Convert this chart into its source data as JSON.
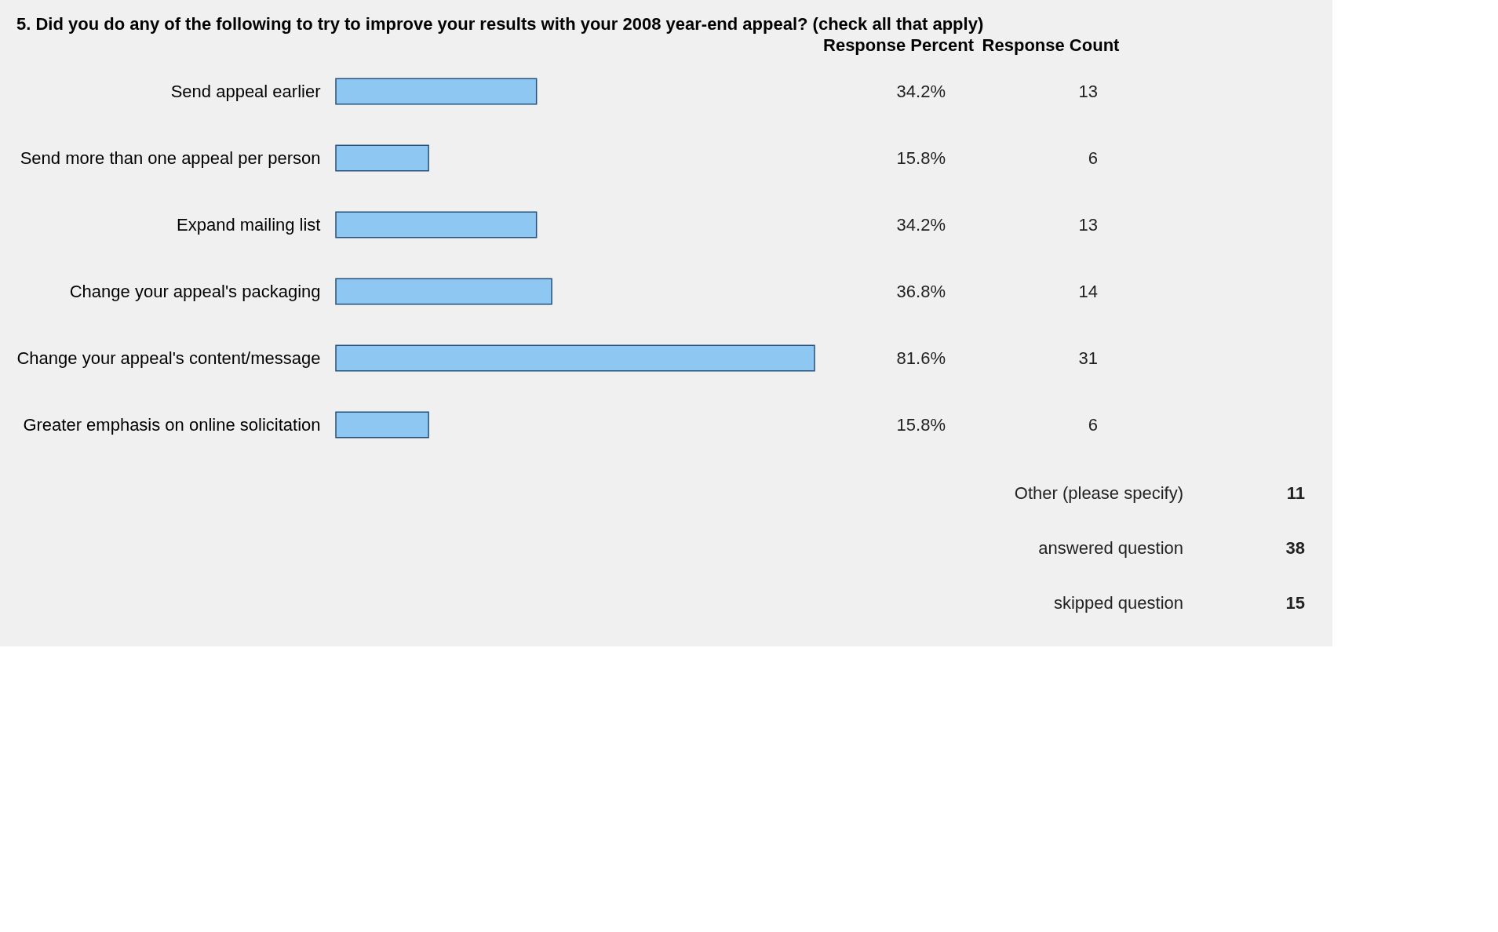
{
  "chart_data": {
    "type": "bar",
    "orientation": "horizontal",
    "title": "5. Did you do any of the following to try to improve your results with your 2008 year-end appeal? (check all that apply)",
    "categories": [
      "Send appeal earlier",
      "Send more than one appeal per person",
      "Expand mailing list",
      "Change your appeal's packaging",
      "Change your appeal's content/message",
      "Greater emphasis on online solicitation"
    ],
    "values": [
      34.2,
      15.8,
      34.2,
      36.8,
      81.6,
      15.8
    ],
    "value_labels": [
      "34.2%",
      "15.8%",
      "34.2%",
      "36.8%",
      "81.6%",
      "15.8%"
    ],
    "color": "#8ec8f2",
    "tick_labels": "y",
    "grid": false,
    "annotations": [
      "Response Percent",
      "Response Count",
      "13",
      "6",
      "13",
      "14",
      "31",
      "6",
      "Other (please specify)",
      "11",
      "answered question",
      "38",
      "skipped question",
      "15"
    ]
  }
}
